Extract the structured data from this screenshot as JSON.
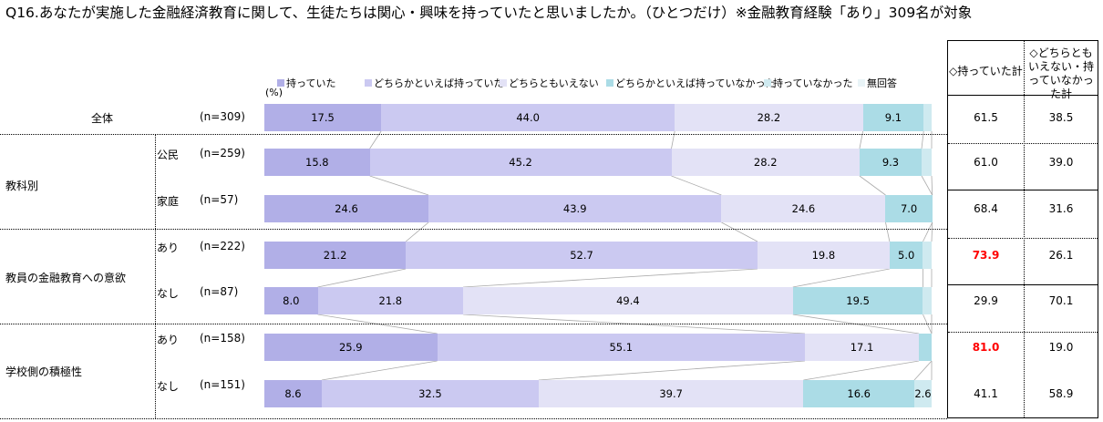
{
  "title": "Q16.あなたが実施した金融経済教育に関して、生徒たちは関心・興味を持っていたと思いましたか。（ひとつだけ）※金融教育経験「あり」309名が対象",
  "chart_data": {
    "type": "bar",
    "orientation": "horizontal-stacked-100",
    "unit_label": "(%)",
    "legend": [
      "持っていた",
      "どちらかといえば持っていた",
      "どちらともいえない",
      "どちらかといえば持っていなかった",
      "持っていなかった",
      "無回答"
    ],
    "colors": [
      "#b1afe7",
      "#cbc9f1",
      "#e3e2f6",
      "#abdce6",
      "#cfeaf0",
      "#e9f4f7"
    ],
    "rows": [
      {
        "group": "全体",
        "sub": "",
        "n": "(n=309)",
        "values": [
          17.5,
          44.0,
          28.2,
          9.1,
          1.2,
          0
        ],
        "labels": [
          "17.5",
          "44.0",
          "28.2",
          "9.1",
          "",
          ""
        ]
      },
      {
        "group": "教科別",
        "sub": "公民",
        "n": "(n=259)",
        "values": [
          15.8,
          45.2,
          28.2,
          9.3,
          1.5,
          0
        ],
        "labels": [
          "15.8",
          "45.2",
          "28.2",
          "9.3",
          "",
          ""
        ]
      },
      {
        "group": "",
        "sub": "家庭",
        "n": "(n=57)",
        "values": [
          24.6,
          43.9,
          24.6,
          7.0,
          0,
          0
        ],
        "labels": [
          "24.6",
          "43.9",
          "24.6",
          "7.0",
          "",
          ""
        ]
      },
      {
        "group": "教員の金融教育への意欲",
        "sub": "あり",
        "n": "(n=222)",
        "values": [
          21.2,
          52.7,
          19.8,
          5.0,
          1.3,
          0
        ],
        "labels": [
          "21.2",
          "52.7",
          "19.8",
          "5.0",
          "",
          ""
        ]
      },
      {
        "group": "",
        "sub": "なし",
        "n": "(n=87)",
        "values": [
          8.0,
          21.8,
          49.4,
          19.5,
          1.3,
          0
        ],
        "labels": [
          "8.0",
          "21.8",
          "49.4",
          "19.5",
          "",
          ""
        ]
      },
      {
        "group": "学校側の積極性",
        "sub": "あり",
        "n": "(n=158)",
        "values": [
          25.9,
          55.1,
          17.1,
          1.9,
          0,
          0
        ],
        "labels": [
          "25.9",
          "55.1",
          "17.1",
          "",
          "",
          ""
        ]
      },
      {
        "group": "",
        "sub": "なし",
        "n": "(n=151)",
        "values": [
          8.6,
          32.5,
          39.7,
          16.6,
          2.6,
          0
        ],
        "labels": [
          "8.6",
          "32.5",
          "39.7",
          "16.6",
          "2.6",
          ""
        ]
      }
    ],
    "summary_headers": [
      "◇持っていた計",
      "◇どちらともいえない・持っていなかった計"
    ],
    "summary": [
      [
        "61.5",
        "38.5"
      ],
      [
        "61.0",
        "39.0"
      ],
      [
        "68.4",
        "31.6"
      ],
      [
        "73.9",
        "26.1"
      ],
      [
        "29.9",
        "70.1"
      ],
      [
        "81.0",
        "19.0"
      ],
      [
        "41.1",
        "58.9"
      ]
    ],
    "highlight": [
      3,
      5
    ],
    "highlight_color": "#ff0000"
  }
}
